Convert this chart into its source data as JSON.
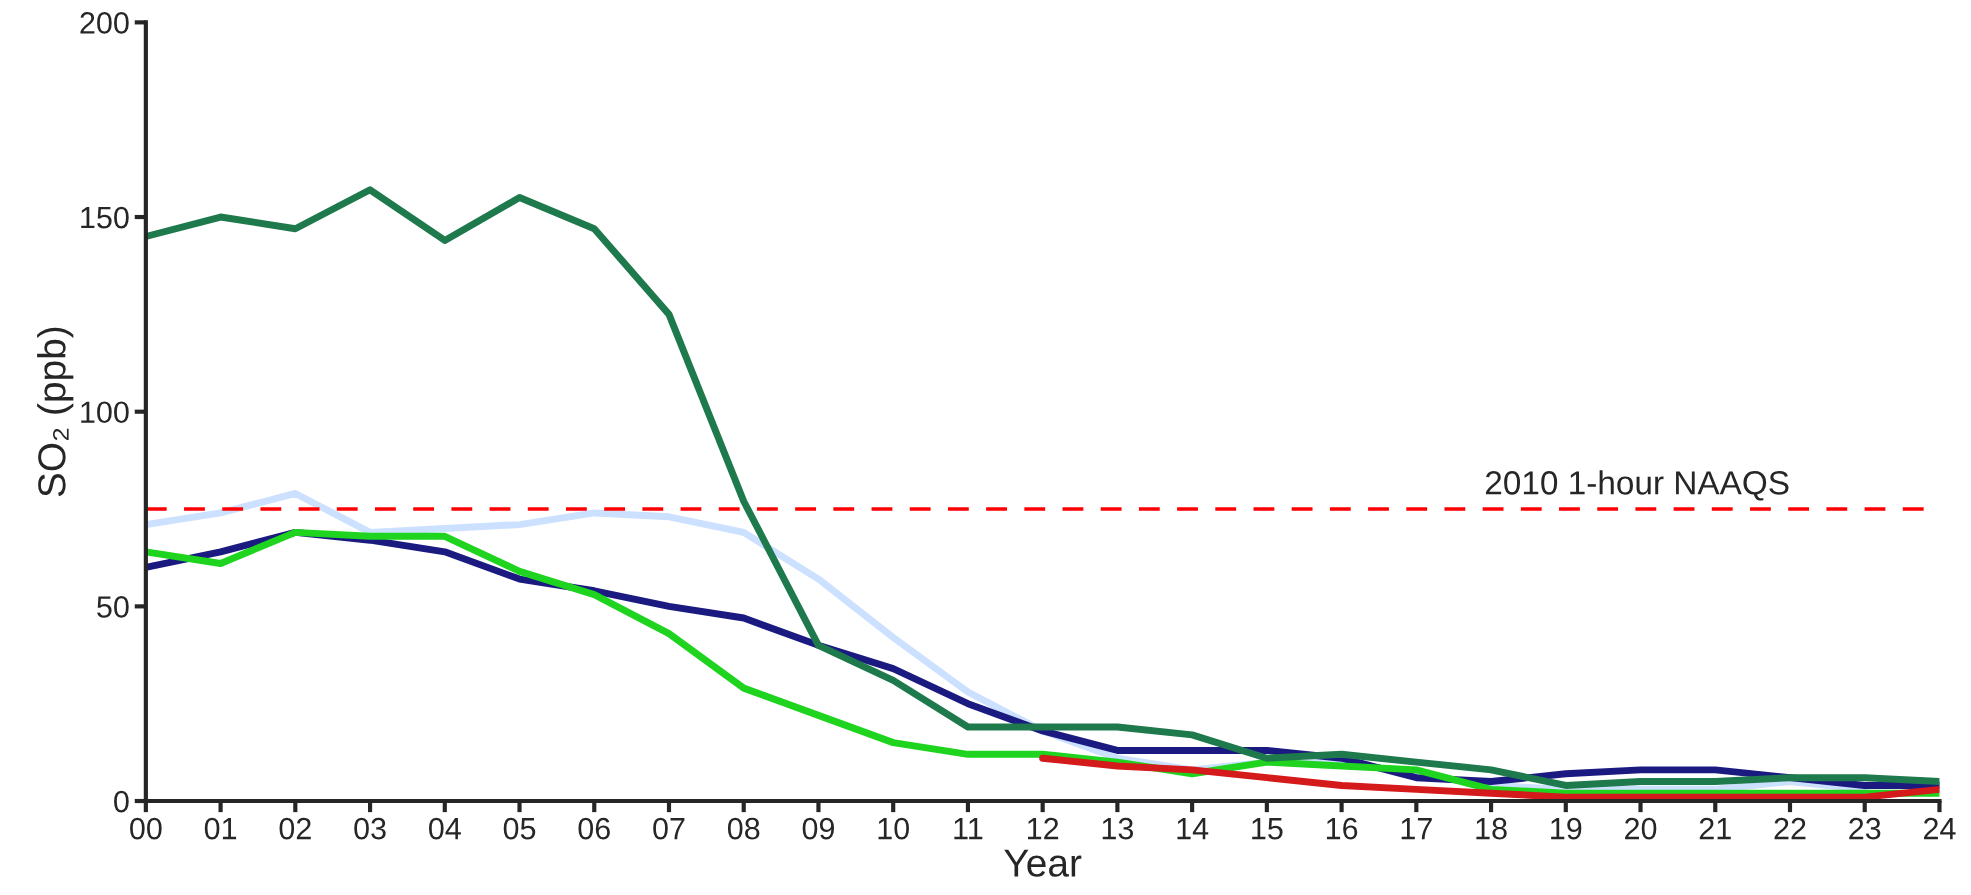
{
  "chart_data": {
    "type": "line",
    "xlabel": "Year",
    "ylabel": "SO₂ (ppb)",
    "categories": [
      "00",
      "01",
      "02",
      "03",
      "04",
      "05",
      "06",
      "07",
      "08",
      "09",
      "10",
      "11",
      "12",
      "13",
      "14",
      "15",
      "16",
      "17",
      "18",
      "19",
      "20",
      "21",
      "22",
      "23",
      "24"
    ],
    "ylim": [
      0,
      200
    ],
    "yticks": [
      0,
      50,
      100,
      150,
      200
    ],
    "grid": false,
    "legend": false,
    "marker": "none",
    "line_style": "solid",
    "series": [
      {
        "color": "#cce0ff",
        "values": [
          71,
          74,
          79,
          69,
          70,
          71,
          74,
          73,
          69,
          57,
          42,
          28,
          18,
          11,
          8,
          10,
          10,
          7,
          4,
          3,
          3,
          3,
          5,
          3,
          null
        ]
      },
      {
        "color": "#1a1a80",
        "values": [
          60,
          64,
          69,
          67,
          64,
          57,
          54,
          50,
          47,
          40,
          34,
          25,
          18,
          13,
          13,
          13,
          11,
          6,
          5,
          7,
          8,
          8,
          6,
          4,
          4
        ]
      },
      {
        "color": "#1ed41e",
        "values": [
          64,
          61,
          69,
          68,
          68,
          59,
          53,
          43,
          29,
          22,
          15,
          12,
          12,
          10,
          7,
          10,
          9,
          8,
          3,
          2,
          2,
          2,
          2,
          null,
          2
        ]
      },
      {
        "color": "#1e7a4c",
        "values": [
          145,
          150,
          147,
          157,
          144,
          155,
          147,
          125,
          77,
          40,
          31,
          19,
          19,
          19,
          17,
          11,
          12,
          10,
          8,
          4,
          5,
          5,
          6,
          6,
          5
        ]
      },
      {
        "color": "#d41a1a",
        "values": [
          null,
          null,
          null,
          null,
          null,
          null,
          null,
          null,
          null,
          null,
          null,
          null,
          11,
          9,
          8,
          6,
          4,
          3,
          2,
          1,
          1,
          1,
          1,
          1,
          3
        ]
      }
    ],
    "ref_lines": [
      {
        "axis": "y",
        "value": 75,
        "label": "2010 1-hour NAAQS",
        "color": "#ff0000",
        "line_style": "dashed"
      }
    ]
  }
}
